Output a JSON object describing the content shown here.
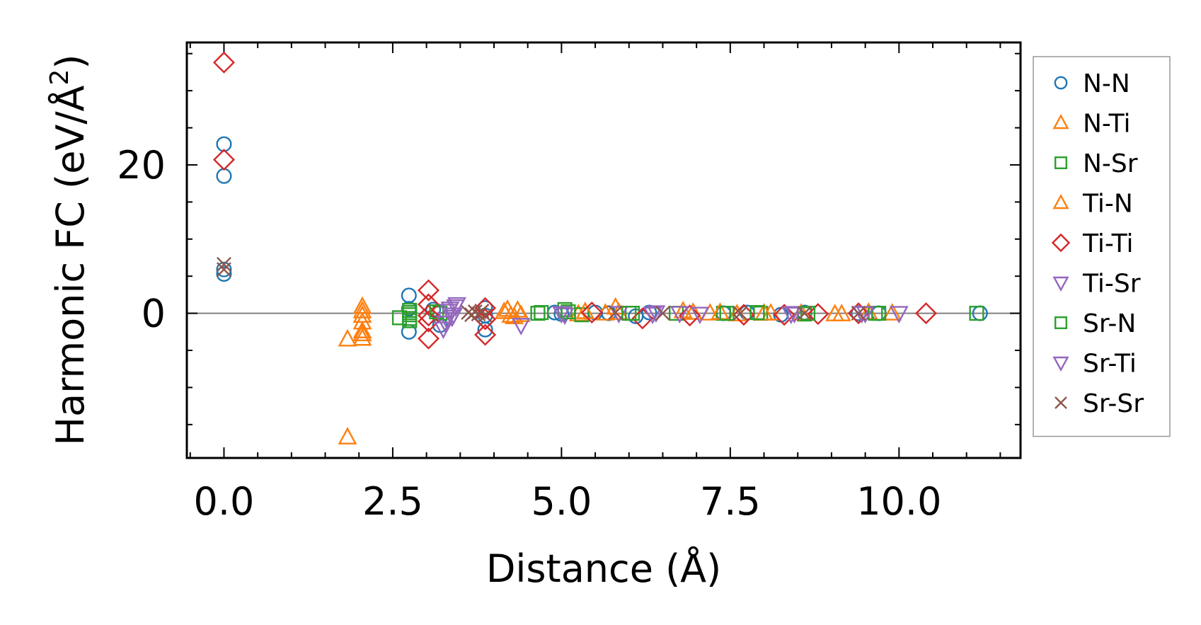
{
  "chart_data": {
    "type": "scatter",
    "title": "",
    "xlabel": "Distance (Å)",
    "ylabel_main": "Harmonic FC (eV/Å",
    "ylabel_sup": "2",
    "ylabel_close": ")",
    "xlim": [
      -0.55,
      11.8
    ],
    "ylim": [
      -19.5,
      36.5
    ],
    "xticks": [
      0.0,
      2.5,
      5.0,
      7.5,
      10.0
    ],
    "xtick_labels": [
      "0.0",
      "2.5",
      "5.0",
      "7.5",
      "10.0"
    ],
    "yticks": [
      0,
      20
    ],
    "ytick_labels": [
      "0",
      "20"
    ],
    "reference_line_y": 0,
    "legend_position": "outside-right",
    "series": [
      {
        "name": "N-N",
        "marker": "circle",
        "color": "#1f77b4",
        "x": [
          0.0,
          0.0,
          0.0,
          0.0,
          2.74,
          2.74,
          2.74,
          3.1,
          3.2,
          3.87,
          3.87,
          3.87,
          4.9,
          5.0,
          5.5,
          5.7,
          6.1,
          6.3,
          7.4,
          7.75,
          8.25,
          8.6,
          9.4,
          9.7,
          11.2
        ],
        "y": [
          22.8,
          18.5,
          5.9,
          5.3,
          2.4,
          0.6,
          -2.5,
          0.5,
          -1.6,
          0.7,
          -0.3,
          -2.2,
          0.1,
          -0.1,
          0.1,
          0.0,
          -0.4,
          0.1,
          0.0,
          0.1,
          -0.2,
          0.1,
          0.0,
          0.0,
          0.0
        ]
      },
      {
        "name": "N-Ti",
        "marker": "triangle-up",
        "color": "#ff7f0e",
        "x": [
          1.83,
          2.05,
          2.05,
          2.05,
          2.05,
          4.15,
          4.25,
          4.35,
          4.4,
          5.25,
          5.8,
          5.85,
          6.95,
          7.2,
          7.6,
          8.1,
          9.05,
          9.55,
          9.9
        ],
        "y": [
          -16.7,
          0.9,
          -0.3,
          -2.4,
          -3.4,
          0.2,
          -0.3,
          0.4,
          -0.2,
          -0.1,
          0.8,
          0.1,
          0.1,
          0.0,
          -0.1,
          0.0,
          -0.1,
          0.1,
          0.0
        ]
      },
      {
        "name": "N-Sr",
        "marker": "square",
        "color": "#2ca02c",
        "x": [
          2.6,
          2.75,
          2.75,
          2.75,
          3.2,
          4.65,
          5.05,
          5.3,
          6.05,
          6.7,
          7.4,
          7.95,
          8.6,
          9.7,
          11.15
        ],
        "y": [
          -0.6,
          0.4,
          -0.2,
          -1.0,
          0.0,
          0.0,
          0.5,
          -0.2,
          0.0,
          0.0,
          0.0,
          0.0,
          -0.1,
          0.0,
          0.0
        ]
      },
      {
        "name": "Ti-N",
        "marker": "triangle-up",
        "color": "#ff7f0e",
        "x": [
          1.83,
          2.05,
          2.05,
          2.05,
          4.2,
          4.3,
          5.35,
          5.65,
          6.8,
          7.35,
          8.0,
          8.55,
          9.15
        ],
        "y": [
          -3.5,
          0.3,
          -1.2,
          -2.8,
          0.5,
          -0.5,
          0.2,
          0.0,
          0.3,
          0.1,
          0.0,
          0.0,
          -0.1
        ]
      },
      {
        "name": "Ti-Ti",
        "marker": "diamond",
        "color": "#d62728",
        "x": [
          0.0,
          0.0,
          3.03,
          3.03,
          3.03,
          3.03,
          3.03,
          3.87,
          3.87,
          3.87,
          5.45,
          6.2,
          6.9,
          7.7,
          8.3,
          8.8,
          9.4,
          10.4
        ],
        "y": [
          33.8,
          20.7,
          3.1,
          1.2,
          -0.3,
          -1.1,
          -3.4,
          0.7,
          -0.8,
          -2.9,
          0.1,
          -0.7,
          -0.3,
          -0.2,
          -0.2,
          -0.1,
          0.0,
          0.0
        ]
      },
      {
        "name": "Ti-Sr",
        "marker": "triangle-down",
        "color": "#9467bd",
        "x": [
          3.25,
          3.3,
          3.35,
          3.4,
          3.45,
          4.4,
          5.05,
          5.85,
          6.35,
          6.75,
          7.05,
          8.45,
          9.45,
          10.0
        ],
        "y": [
          -2.1,
          -0.8,
          0.6,
          -0.2,
          1.2,
          -1.6,
          -0.2,
          0.0,
          -0.1,
          0.0,
          -0.1,
          0.0,
          0.0,
          0.0
        ]
      },
      {
        "name": "Sr-N",
        "marker": "square",
        "color": "#2ca02c",
        "x": [
          2.75,
          2.75,
          3.15,
          4.7,
          5.1,
          6.0,
          7.45,
          7.9,
          8.65,
          9.65
        ],
        "y": [
          0.1,
          -0.7,
          0.2,
          0.1,
          0.2,
          0.0,
          0.0,
          0.1,
          0.0,
          0.0
        ]
      },
      {
        "name": "Sr-Ti",
        "marker": "triangle-down",
        "color": "#9467bd",
        "x": [
          3.28,
          3.33,
          3.38,
          3.43,
          5.0,
          6.4,
          8.4,
          9.5
        ],
        "y": [
          -1.3,
          0.3,
          -0.5,
          0.9,
          0.0,
          0.1,
          -0.1,
          0.0
        ]
      },
      {
        "name": "Sr-Sr",
        "marker": "x",
        "color": "#8c564b",
        "x": [
          0.0,
          0.0,
          3.62,
          3.67,
          3.72,
          3.77,
          3.82,
          3.87,
          5.8,
          6.5,
          7.65,
          8.6,
          9.4
        ],
        "y": [
          6.6,
          5.9,
          0.1,
          -0.2,
          0.2,
          -0.1,
          0.3,
          -0.3,
          0.1,
          0.0,
          0.0,
          0.0,
          0.0
        ]
      }
    ]
  }
}
